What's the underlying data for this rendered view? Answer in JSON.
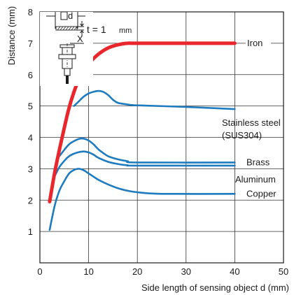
{
  "chart_data": {
    "type": "line",
    "xlabel": "Side length of sensing object d (mm)",
    "ylabel": "Distance (mm)",
    "xlim": [
      0,
      50
    ],
    "ylim": [
      0,
      8
    ],
    "x_ticks": [
      0,
      10,
      20,
      30,
      40,
      50
    ],
    "y_ticks": [
      1,
      2,
      3,
      4,
      5,
      6,
      7,
      8
    ],
    "grid": true,
    "series": [
      {
        "name": "Iron",
        "color": "#e8262b",
        "points": [
          [
            2,
            1.95
          ],
          [
            3,
            2.85
          ],
          [
            4,
            3.6
          ],
          [
            5,
            4.3
          ],
          [
            6,
            4.95
          ],
          [
            7,
            5.45
          ],
          [
            8,
            5.85
          ],
          [
            9,
            6.15
          ],
          [
            10,
            6.35
          ],
          [
            12,
            6.65
          ],
          [
            14,
            6.85
          ],
          [
            16,
            6.95
          ],
          [
            18,
            7.0
          ],
          [
            20,
            7.0
          ],
          [
            30,
            7.0
          ],
          [
            40,
            7.0
          ]
        ]
      },
      {
        "name": "Stainless steel\n(SUS304)",
        "color": "#1f7bbf",
        "points": [
          [
            7,
            5.0
          ],
          [
            8,
            5.15
          ],
          [
            9,
            5.3
          ],
          [
            10,
            5.4
          ],
          [
            11,
            5.45
          ],
          [
            12,
            5.48
          ],
          [
            13,
            5.45
          ],
          [
            14,
            5.35
          ],
          [
            15,
            5.2
          ],
          [
            16,
            5.1
          ],
          [
            18,
            5.05
          ],
          [
            20,
            5.02
          ],
          [
            30,
            4.97
          ],
          [
            40,
            4.9
          ]
        ]
      },
      {
        "name": "Brass",
        "color": "#1f7bbf",
        "points": [
          [
            4,
            3.4
          ],
          [
            5,
            3.6
          ],
          [
            6,
            3.78
          ],
          [
            7,
            3.88
          ],
          [
            8,
            3.95
          ],
          [
            9,
            3.96
          ],
          [
            10,
            3.9
          ],
          [
            11,
            3.78
          ],
          [
            12,
            3.62
          ],
          [
            13,
            3.5
          ],
          [
            14,
            3.4
          ],
          [
            16,
            3.3
          ],
          [
            18,
            3.24
          ],
          [
            20,
            3.2
          ],
          [
            40,
            3.2
          ]
        ]
      },
      {
        "name": "Aluminum",
        "color": "#1f7bbf",
        "points": [
          [
            3,
            2.75
          ],
          [
            4,
            3.05
          ],
          [
            5,
            3.25
          ],
          [
            6,
            3.4
          ],
          [
            7,
            3.48
          ],
          [
            8,
            3.53
          ],
          [
            9,
            3.55
          ],
          [
            10,
            3.52
          ],
          [
            11,
            3.45
          ],
          [
            12,
            3.35
          ],
          [
            14,
            3.22
          ],
          [
            16,
            3.15
          ],
          [
            18,
            3.11
          ],
          [
            20,
            3.1
          ],
          [
            40,
            3.1
          ]
        ]
      },
      {
        "name": "Copper",
        "color": "#1f7bbf",
        "points": [
          [
            2,
            1.05
          ],
          [
            3,
            1.8
          ],
          [
            4,
            2.3
          ],
          [
            5,
            2.6
          ],
          [
            6,
            2.85
          ],
          [
            7,
            2.96
          ],
          [
            8,
            3.0
          ],
          [
            9,
            2.95
          ],
          [
            10,
            2.85
          ],
          [
            12,
            2.65
          ],
          [
            14,
            2.5
          ],
          [
            16,
            2.38
          ],
          [
            18,
            2.3
          ],
          [
            20,
            2.25
          ],
          [
            25,
            2.2
          ],
          [
            40,
            2.2
          ]
        ]
      }
    ],
    "annotation": {
      "t_label": "t = 1",
      "t_unit": "mm",
      "d_label": "d",
      "x_label": "X"
    }
  }
}
